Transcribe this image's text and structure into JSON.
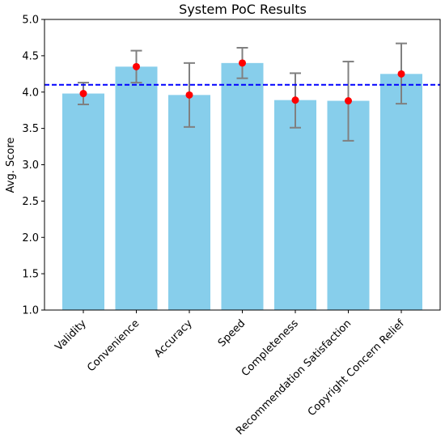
{
  "chart_data": {
    "type": "bar",
    "title": "System PoC Results",
    "xlabel": "",
    "ylabel": "Avg. Score",
    "ylim": [
      1.0,
      5.0
    ],
    "yticks": [
      "1.0",
      "1.5",
      "2.0",
      "2.5",
      "3.0",
      "3.5",
      "4.0",
      "4.5",
      "5.0"
    ],
    "categories": [
      "Validity",
      "Convenience",
      "Accuracy",
      "Speed",
      "Completeness",
      "Recommendation Satisfaction",
      "Copyright Concern Relief"
    ],
    "values": [
      3.98,
      4.35,
      3.96,
      4.4,
      3.89,
      3.88,
      4.25
    ],
    "error_low": [
      3.83,
      4.13,
      3.52,
      4.19,
      3.51,
      3.33,
      3.84
    ],
    "error_high": [
      4.13,
      4.57,
      4.4,
      4.61,
      4.26,
      4.42,
      4.67
    ],
    "reference_line": {
      "value": 4.1,
      "style": "dashed",
      "color": "#0000ff"
    },
    "colors": {
      "bar": "#87ceeb",
      "point": "#ff0000",
      "errorbar": "#808080"
    },
    "grid": false,
    "legend": "none"
  }
}
